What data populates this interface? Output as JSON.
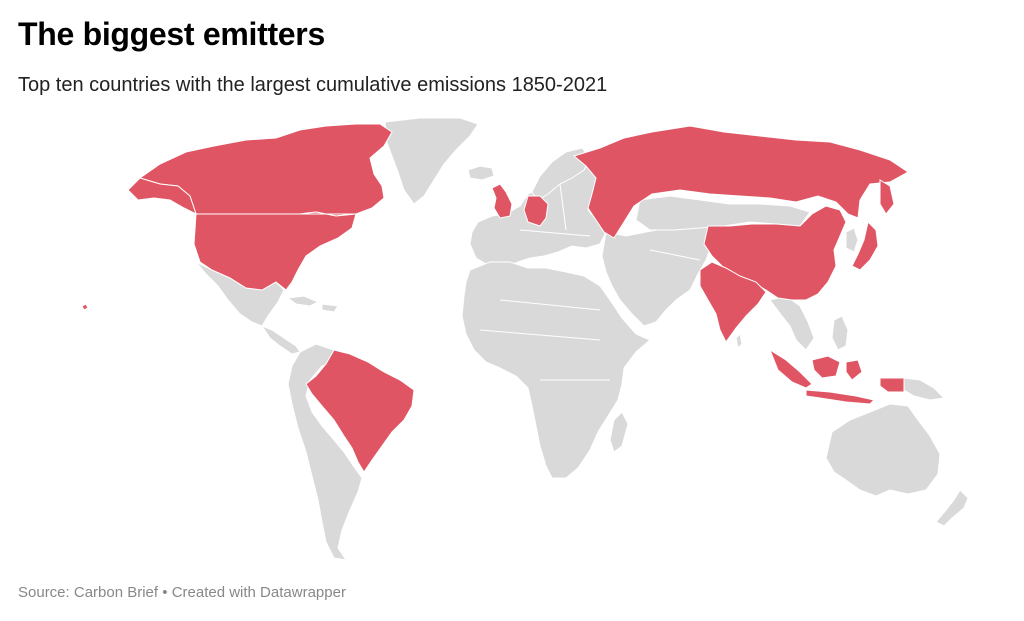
{
  "header": {
    "title": "The biggest emitters",
    "subtitle": "Top ten countries with the largest cumulative emissions 1850-2021"
  },
  "footer": {
    "source": "Source: Carbon Brief",
    "separator": "•",
    "credit": "Created with Datawrapper"
  },
  "map": {
    "base_color": "#d9d9d9",
    "highlight_color": "#e05563",
    "highlighted_countries": [
      "United States",
      "China",
      "Russia",
      "Brazil",
      "Indonesia",
      "Germany",
      "India",
      "United Kingdom",
      "Japan",
      "Canada"
    ]
  }
}
